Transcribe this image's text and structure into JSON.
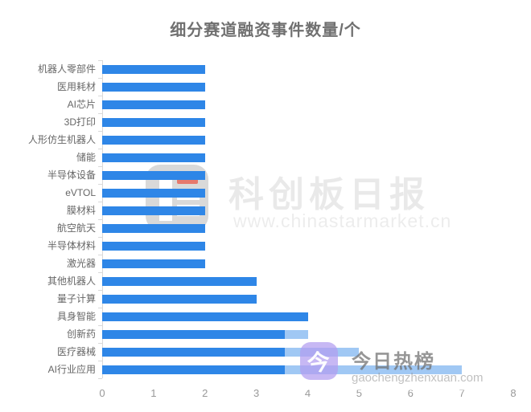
{
  "title": "细分赛道融资事件数量/个",
  "chart_data": {
    "type": "bar",
    "orientation": "horizontal",
    "title": "细分赛道融资事件数量/个",
    "xlabel": "",
    "ylabel": "",
    "categories": [
      "机器人零部件",
      "医用耗材",
      "AI芯片",
      "3D打印",
      "人形仿生机器人",
      "储能",
      "半导体设备",
      "eVTOL",
      "膜材料",
      "航空航天",
      "半导体材料",
      "激光器",
      "其他机器人",
      "量子计算",
      "具身智能",
      "创新药",
      "医疗器械",
      "AI行业应用"
    ],
    "values": [
      2,
      2,
      2,
      2,
      2,
      2,
      2,
      2,
      2,
      2,
      2,
      2,
      3,
      3,
      4,
      4,
      5,
      7
    ],
    "xlim": [
      0,
      8
    ],
    "x_ticks": [
      0,
      1,
      2,
      3,
      4,
      5,
      6,
      7,
      8
    ],
    "grid": false,
    "legend": false,
    "bar_color": "#2e86e7"
  },
  "colors": {
    "bar": "#2e86e7",
    "axis_line": "#d9d9d9",
    "category_label": "#666666",
    "tick_label": "#999999",
    "badge_icon": "#b19cf0"
  },
  "watermarks": {
    "center": {
      "brand": "科创板日报",
      "url": "www.chinastarmarket.cn"
    },
    "badge": {
      "icon_glyph": "今",
      "label": "今日热榜",
      "url": "gaochengzhenxuan.com"
    }
  }
}
